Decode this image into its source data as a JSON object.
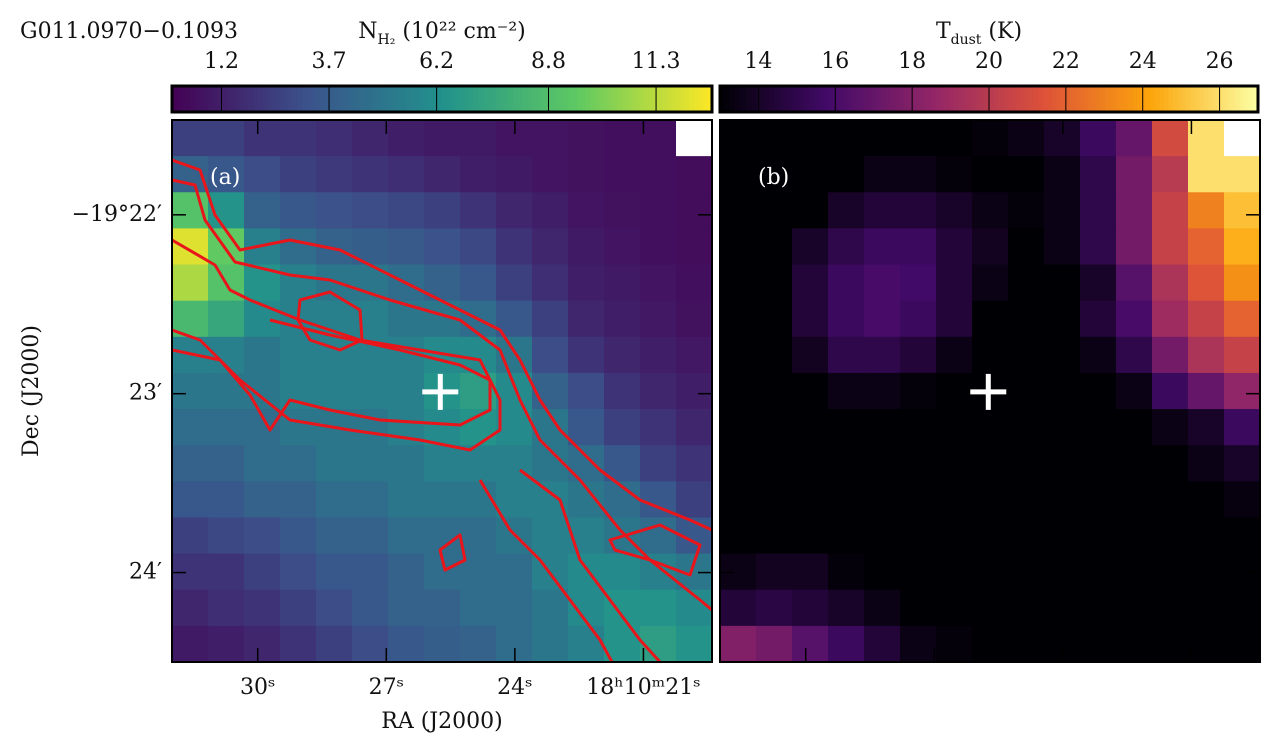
{
  "chart_data": [
    {
      "type": "heatmap",
      "title": "G011.0970−0.1093",
      "panel_label": "(a)",
      "colorbar": {
        "label": [
          "N",
          "H₂",
          " (10²² cm⁻²)"
        ],
        "colormap": "viridis",
        "clim": [
          0.05,
          12.6
        ],
        "ticks": [
          1.2,
          3.7,
          6.2,
          8.8,
          11.3
        ]
      },
      "x_label": "RA (J2000)",
      "y_label": "Dec (J2000)",
      "xlim": [
        32.0,
        19.4
      ],
      "ylim": [
        -24.5,
        -21.47
      ],
      "xticks": [
        {
          "value": 30,
          "label": "30ˢ"
        },
        {
          "value": 27,
          "label": "27ˢ"
        },
        {
          "value": 24,
          "label": "24ˢ"
        },
        {
          "value": 21,
          "label": "18ʰ10ᵐ21ˢ"
        }
      ],
      "yticks": [
        {
          "value": -22,
          "label": "−19°22′"
        },
        {
          "value": -23,
          "label": "23′"
        },
        {
          "value": -24,
          "label": "24′"
        }
      ],
      "marker": {
        "x": 25.74,
        "y": -22.99
      },
      "z": [
        [
          2.5,
          2.5,
          2.0,
          2.0,
          1.8,
          1.5,
          1.2,
          1.0,
          1.0,
          0.8,
          0.8,
          0.7,
          0.6,
          0.6,
          null
        ],
        [
          4.0,
          3.5,
          3.0,
          2.5,
          2.2,
          2.0,
          1.8,
          1.5,
          1.2,
          1.0,
          0.8,
          0.7,
          0.6,
          0.6,
          0.5
        ],
        [
          9.0,
          6.5,
          4.0,
          3.5,
          3.2,
          3.0,
          2.8,
          2.5,
          2.0,
          1.5,
          1.2,
          0.8,
          0.7,
          0.6,
          0.5
        ],
        [
          12.0,
          9.5,
          5.5,
          4.5,
          4.0,
          3.8,
          3.6,
          3.2,
          2.8,
          2.0,
          1.5,
          1.0,
          0.8,
          0.6,
          0.5
        ],
        [
          11.0,
          9.0,
          6.5,
          5.5,
          5.0,
          5.0,
          4.5,
          4.0,
          3.5,
          2.5,
          1.8,
          1.2,
          1.0,
          0.8,
          0.6
        ],
        [
          8.5,
          7.5,
          6.0,
          5.5,
          5.5,
          5.5,
          5.0,
          5.0,
          4.5,
          3.5,
          2.5,
          1.5,
          1.2,
          0.9,
          0.7
        ],
        [
          5.5,
          5.5,
          5.0,
          5.5,
          5.5,
          5.5,
          5.5,
          6.0,
          6.0,
          5.0,
          3.0,
          2.0,
          1.5,
          1.2,
          0.9
        ],
        [
          5.0,
          5.0,
          5.0,
          5.5,
          5.5,
          5.5,
          5.5,
          6.5,
          7.0,
          6.0,
          4.0,
          3.0,
          2.0,
          1.5,
          1.2
        ],
        [
          4.5,
          4.5,
          4.5,
          5.0,
          5.0,
          5.0,
          5.5,
          6.0,
          6.5,
          6.0,
          5.0,
          3.5,
          2.5,
          2.0,
          1.5
        ],
        [
          4.0,
          4.0,
          4.5,
          4.5,
          5.0,
          5.0,
          5.0,
          5.5,
          5.5,
          5.5,
          5.0,
          4.5,
          3.5,
          2.5,
          2.0
        ],
        [
          3.5,
          3.5,
          4.0,
          4.0,
          4.5,
          4.5,
          5.0,
          5.0,
          5.0,
          5.5,
          5.5,
          5.0,
          4.5,
          3.5,
          2.5
        ],
        [
          2.5,
          2.8,
          3.0,
          3.5,
          4.0,
          4.0,
          4.5,
          4.5,
          4.5,
          5.0,
          5.5,
          5.5,
          5.0,
          4.5,
          3.5
        ],
        [
          2.0,
          2.0,
          2.5,
          3.0,
          3.5,
          3.5,
          4.0,
          4.5,
          4.5,
          4.5,
          5.5,
          6.0,
          6.0,
          5.5,
          5.0
        ],
        [
          1.5,
          1.8,
          2.0,
          2.5,
          3.0,
          3.5,
          4.0,
          4.0,
          4.5,
          4.5,
          5.0,
          6.0,
          6.5,
          6.5,
          6.0
        ],
        [
          1.0,
          1.2,
          1.5,
          2.0,
          2.5,
          3.0,
          3.5,
          3.8,
          4.0,
          4.5,
          5.0,
          5.5,
          6.5,
          7.0,
          6.5
        ]
      ]
    },
    {
      "type": "heatmap",
      "panel_label": "(b)",
      "colorbar": {
        "label": [
          "T",
          "dust",
          " (K)"
        ],
        "colormap": "inferno",
        "clim": [
          13,
          27
        ],
        "ticks": [
          14,
          16,
          18,
          20,
          22,
          24,
          26
        ]
      },
      "xlim": [
        32.0,
        19.4
      ],
      "ylim": [
        -24.5,
        -21.47
      ],
      "xticks": [
        30,
        27,
        24,
        21
      ],
      "yticks": [
        -22,
        -23,
        -24
      ],
      "marker": {
        "x": 25.74,
        "y": -22.99
      },
      "z": [
        [
          13,
          13,
          13,
          13,
          13,
          13,
          13,
          13.2,
          13.5,
          14,
          15.5,
          17,
          21,
          26,
          null
        ],
        [
          13,
          13,
          13,
          13,
          13.5,
          13.5,
          13.2,
          13,
          13,
          13.5,
          15,
          17.5,
          20,
          26,
          26
        ],
        [
          13,
          13,
          13,
          14,
          14.5,
          14.5,
          14,
          13.5,
          13.2,
          13.5,
          15,
          17.5,
          20.5,
          23,
          25
        ],
        [
          13,
          13,
          14,
          15,
          15.5,
          15.5,
          14.5,
          13.8,
          13,
          13.5,
          15,
          17.5,
          20.5,
          22,
          24.5
        ],
        [
          13,
          13,
          14.5,
          15.5,
          16,
          15.8,
          14.5,
          13.5,
          13,
          13,
          14,
          16.5,
          19.5,
          21.5,
          23.5
        ],
        [
          13,
          13,
          14.5,
          15.5,
          16,
          15.5,
          14.5,
          13,
          13,
          13,
          14.5,
          16,
          19,
          20.5,
          22
        ],
        [
          13,
          13,
          13.8,
          15,
          15,
          14.5,
          13.5,
          13,
          13,
          13,
          13.5,
          15,
          17.5,
          19.5,
          20.5
        ],
        [
          13,
          13,
          13,
          13.5,
          13.5,
          13.2,
          13,
          13,
          13,
          13,
          13,
          13.5,
          15.5,
          17,
          18.5
        ],
        [
          13,
          13,
          13,
          13,
          13,
          13,
          13,
          13,
          13,
          13,
          13,
          13,
          13.5,
          14,
          15.5
        ],
        [
          13,
          13,
          13,
          13,
          13,
          13,
          13,
          13,
          13,
          13,
          13,
          13,
          13,
          13.5,
          14
        ],
        [
          13,
          13,
          13,
          13,
          13,
          13,
          13,
          13,
          13,
          13,
          13,
          13,
          13,
          13,
          13.3
        ],
        [
          13,
          13,
          13,
          13,
          13,
          13,
          13,
          13,
          13,
          13,
          13,
          13,
          13,
          13,
          13
        ],
        [
          13.5,
          13.8,
          13.8,
          13.2,
          13,
          13,
          13,
          13,
          13,
          13,
          13,
          13,
          13,
          13,
          13
        ],
        [
          14.5,
          14.8,
          14.5,
          14,
          13.5,
          13,
          13,
          13,
          13,
          13,
          13,
          13,
          13,
          13,
          13
        ],
        [
          18,
          17.5,
          16.5,
          15.5,
          14.5,
          13.5,
          13.2,
          13,
          13,
          13,
          13,
          13,
          13,
          13,
          13
        ]
      ]
    }
  ]
}
